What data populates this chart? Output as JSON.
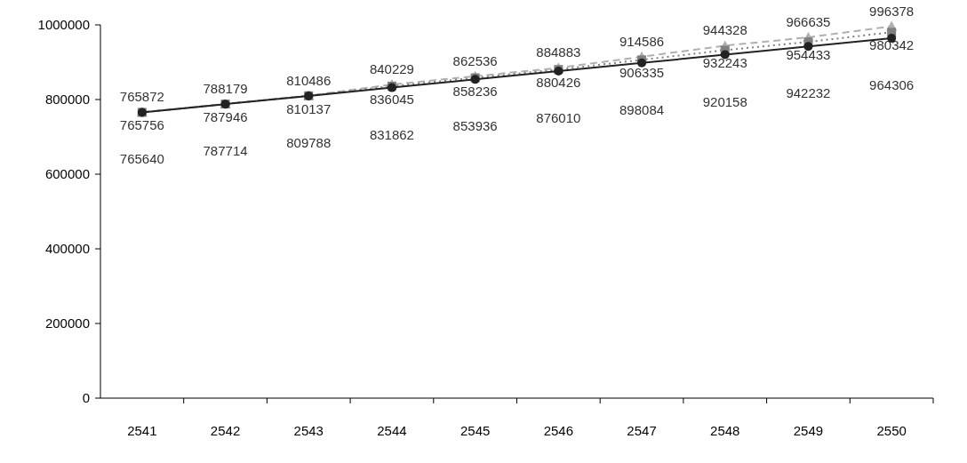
{
  "chart_data": {
    "type": "line",
    "categories": [
      "2541",
      "2542",
      "2543",
      "2544",
      "2545",
      "2546",
      "2547",
      "2548",
      "2549",
      "2550"
    ],
    "series": [
      {
        "color": "#b0b0b0",
        "marker": "triangle",
        "line_style": "dashed",
        "values": [
          765872,
          788179,
          810486,
          840229,
          862536,
          884883,
          914586,
          944328,
          966635,
          996378
        ]
      },
      {
        "color": "#808080",
        "marker": "square",
        "line_style": "dotted",
        "values": [
          765756,
          787946,
          810137,
          836045,
          858236,
          880426,
          906335,
          932243,
          954433,
          980342
        ]
      },
      {
        "color": "#222222",
        "marker": "circle",
        "line_style": "solid",
        "values": [
          765640,
          787714,
          809788,
          831862,
          853936,
          876010,
          898084,
          920158,
          942232,
          964306
        ]
      }
    ],
    "ylim": [
      0,
      1000000
    ],
    "yticks": [
      0,
      200000,
      400000,
      600000,
      800000,
      1000000
    ],
    "data_labels": true
  }
}
